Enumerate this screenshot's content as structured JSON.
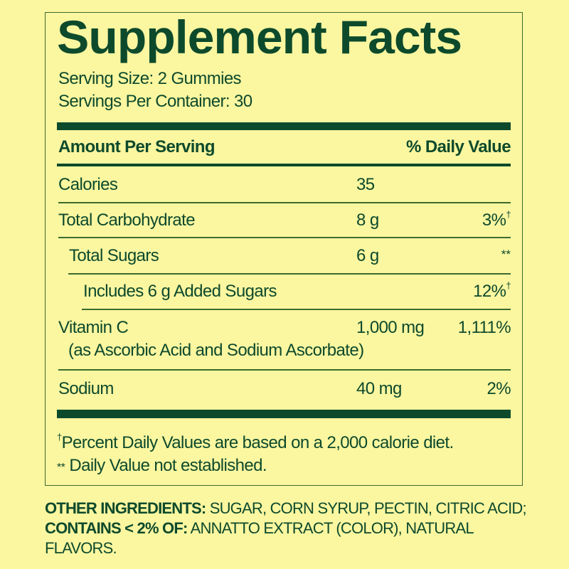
{
  "title": "Supplement Facts",
  "serving_size": "Serving Size: 2 Gummies",
  "servings_per_container": "Servings Per Container: 30",
  "header": {
    "amount": "Amount Per Serving",
    "dv": "% Daily Value"
  },
  "rows": [
    {
      "name": "Calories",
      "amount": "35",
      "dv": ""
    },
    {
      "name": "Total Carbohydrate",
      "amount": "8 g",
      "dv": "3%",
      "dv_mark": "†"
    },
    {
      "name": "Total Sugars",
      "amount": "6 g",
      "dv": "**"
    },
    {
      "name": "Includes 6 g Added Sugars",
      "amount": "",
      "dv": "12%",
      "dv_mark": "†"
    },
    {
      "name": "Vitamin C",
      "sub": "(as Ascorbic Acid and Sodium Ascorbate)",
      "amount": "1,000 mg",
      "dv": "1,111%"
    },
    {
      "name": "Sodium",
      "amount": "40 mg",
      "dv": "2%"
    }
  ],
  "footnotes": {
    "dagger_mark": "†",
    "dagger": "Percent Daily Values are based on a 2,000 calorie diet.",
    "stars_mark": "**",
    "stars": "Daily Value not established."
  },
  "ingredients": {
    "label1": "OTHER INGREDIENTS:",
    "text1": " SUGAR, CORN SYRUP, PECTIN, CITRIC ACID; ",
    "label2": "CONTAINS < 2% OF:",
    "text2": " ANNATTO EXTRACT (COLOR), NATURAL FLAVORS."
  },
  "colors": {
    "background": "#fbf6a0",
    "text": "#0d4a2c"
  }
}
